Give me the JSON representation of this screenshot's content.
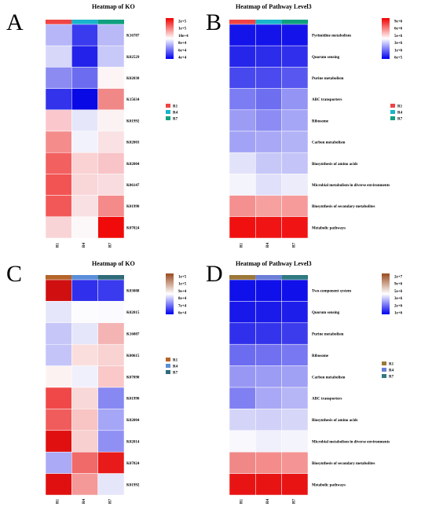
{
  "chart_data": [
    {
      "panel": "A",
      "type": "heatmap",
      "title": "Heatmap of KO",
      "columns": [
        "R1",
        "R4",
        "R7"
      ],
      "rows": [
        "K16787",
        "K02529",
        "K02030",
        "K15634",
        "K01992",
        "K02003",
        "K02004",
        "K06147",
        "K01990",
        "K07024"
      ],
      "colors": [
        [
          "#b6b6f8",
          "#3a3aee",
          "#b9b9f8"
        ],
        [
          "#d7d7fa",
          "#2222ea",
          "#c8c8f9"
        ],
        [
          "#8b8bf2",
          "#6c6cf0",
          "#fdf4f6"
        ],
        [
          "#3333ec",
          "#0909e6",
          "#f08888"
        ],
        [
          "#fac8cc",
          "#e6e6fb",
          "#fbf2f4"
        ],
        [
          "#f48c8c",
          "#f2f2fd",
          "#f9e1e4"
        ],
        [
          "#f36060",
          "#fad2d4",
          "#f8c4c8"
        ],
        [
          "#f25454",
          "#f9d6d8",
          "#f8dcdf"
        ],
        [
          "#f35858",
          "#f9e0e2",
          "#f48a8a"
        ],
        [
          "#f9d4d6",
          "#fcf8f9",
          "#f00a0a"
        ]
      ],
      "legend_gradient": [
        "#f00000",
        "#ffffff",
        "#0000f0"
      ],
      "legend_ticks": [
        "2e+5",
        "1e+5",
        "10e+4",
        "8e+4",
        "6e+4",
        "4e+4"
      ],
      "legend_entries": [
        {
          "label": "R1",
          "color": "#f04444"
        },
        {
          "label": "R4",
          "color": "#1ab4cc"
        },
        {
          "label": "R7",
          "color": "#10a080"
        }
      ]
    },
    {
      "panel": "B",
      "type": "heatmap",
      "title": "Heatmap of Pathway Level3",
      "columns": [
        "R1",
        "R4",
        "R7"
      ],
      "rows": [
        "Pyrimidine metabolism",
        "Quorum sensing",
        "Purine metabolism",
        "ABC transporters",
        "Ribosome",
        "Carbon metabolism",
        "Biosynthesis of amino acids",
        "Microbial metabolism in diverse environments",
        "Biosynthesis of secondary metabolites",
        "Metabolic pathways"
      ],
      "colors": [
        [
          "#1414ea",
          "#1414ea",
          "#1414ea"
        ],
        [
          "#2626eb",
          "#2c2ceb",
          "#3030ec"
        ],
        [
          "#4848ef",
          "#4a4aef",
          "#5858f0"
        ],
        [
          "#7c7cf3",
          "#6e6ef1",
          "#9494f4"
        ],
        [
          "#9c9cf5",
          "#8c8cf4",
          "#a6a6f6"
        ],
        [
          "#a2a2f6",
          "#a8a8f7",
          "#b2b2f7"
        ],
        [
          "#e2e2fa",
          "#c8c8f8",
          "#c4c4f8"
        ],
        [
          "#f4f4fc",
          "#e0e0fa",
          "#ececfb"
        ],
        [
          "#f49090",
          "#f6a0a0",
          "#f69a9a"
        ],
        [
          "#f01010",
          "#f01414",
          "#f01414"
        ]
      ],
      "legend_gradient": [
        "#f00000",
        "#ffffff",
        "#0000f0"
      ],
      "legend_ticks": [
        "9e+6",
        "6e+6",
        "5e+6",
        "3e+6",
        "1e+6",
        "6e+5"
      ],
      "legend_entries": [
        {
          "label": "R1",
          "color": "#f04444"
        },
        {
          "label": "R4",
          "color": "#1ab4cc"
        },
        {
          "label": "R7",
          "color": "#10a080"
        }
      ]
    },
    {
      "panel": "C",
      "type": "heatmap",
      "title": "Heatmap of KO",
      "columns": [
        "R1",
        "R4",
        "R7"
      ],
      "rows": [
        "K03088",
        "K02015",
        "K16087",
        "K00615",
        "K07090",
        "K01990",
        "K02004",
        "K02014",
        "K07024",
        "K01992"
      ],
      "colors": [
        [
          "#d01010",
          "#3030ec",
          "#3a3aee"
        ],
        [
          "#e6e6fb",
          "#fcfcff",
          "#fbfbff"
        ],
        [
          "#c6c6f8",
          "#e6e6fb",
          "#f4b4b4"
        ],
        [
          "#c4c4f8",
          "#fadede",
          "#f9d2d2"
        ],
        [
          "#fcf2f2",
          "#f0f0fd",
          "#fac8c8"
        ],
        [
          "#f04848",
          "#f8d8d8",
          "#8888f2"
        ],
        [
          "#f05c5c",
          "#f8c4c4",
          "#a6a6f6"
        ],
        [
          "#e01010",
          "#f8d0d0",
          "#9090f4"
        ],
        [
          "#aaaaf6",
          "#f06a6a",
          "#e81a1a"
        ],
        [
          "#e01010",
          "#f49898",
          "#e6e6fb"
        ]
      ],
      "legend_gradient": [
        "#9a4a1e",
        "#ffffff",
        "#0000f0"
      ],
      "legend_ticks": [
        "1e+5",
        "1e+5",
        "9e+4",
        "8e+4",
        "7e+4",
        "6e+4"
      ],
      "legend_entries": [
        {
          "label": "R1",
          "color": "#b5652a"
        },
        {
          "label": "R4",
          "color": "#5b8ed8"
        },
        {
          "label": "R7",
          "color": "#2f6b78"
        }
      ]
    },
    {
      "panel": "D",
      "type": "heatmap",
      "title": "Heatmap of Pathway Level3",
      "columns": [
        "R1",
        "R4",
        "R7"
      ],
      "rows": [
        "Two-component system",
        "Quorum sensing",
        "Purine metabolism",
        "Ribosome",
        "Carbon metabolism",
        "ABC transporters",
        "Biosynthesis of amino acids",
        "Microbial metabolism in diverse environments",
        "Biosynthesis of secondary metabolites",
        "Metabolic pathways"
      ],
      "colors": [
        [
          "#1010ea",
          "#1010ea",
          "#1010ea"
        ],
        [
          "#1818ea",
          "#1a1aea",
          "#1e1eeb"
        ],
        [
          "#3030ec",
          "#3434ec",
          "#3c3ced"
        ],
        [
          "#6c6cf1",
          "#7070f1",
          "#7878f2"
        ],
        [
          "#9898f4",
          "#9c9cf5",
          "#a0a0f5"
        ],
        [
          "#8080f2",
          "#a8a8f6",
          "#b6b6f7"
        ],
        [
          "#d4d4f9",
          "#d0d0f9",
          "#d6d6f9"
        ],
        [
          "#f8f8fd",
          "#f0f0fc",
          "#f4f4fc"
        ],
        [
          "#f08888",
          "#f48c8c",
          "#f49494"
        ],
        [
          "#e81414",
          "#e81414",
          "#e81414"
        ]
      ],
      "legend_gradient": [
        "#9a4a1e",
        "#ffffff",
        "#0000f0"
      ],
      "legend_ticks": [
        "2e+7",
        "9e+6",
        "5e+6",
        "3e+6",
        "2e+6",
        "1e+6"
      ],
      "legend_entries": [
        {
          "label": "R1",
          "color": "#9c7838"
        },
        {
          "label": "R4",
          "color": "#6a7ed8"
        },
        {
          "label": "R7",
          "color": "#2e7a80"
        }
      ]
    }
  ]
}
